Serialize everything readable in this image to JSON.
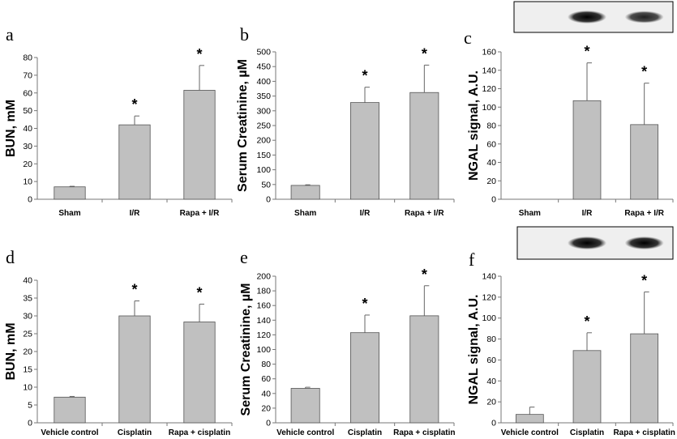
{
  "colors": {
    "bar_fill": "#c0c0c0",
    "bar_stroke": "#555555",
    "axis": "#777777",
    "blot_bg": "#efefef"
  },
  "chart_data": [
    {
      "type": "bar",
      "panel": "a",
      "categories": [
        "Sham",
        "I/R",
        "Rapa + I/R"
      ],
      "values": [
        7,
        42,
        61.5
      ],
      "errors": [
        0.3,
        5,
        14
      ],
      "significance": [
        "",
        "*",
        "*"
      ],
      "ylabel": "BUN, mM",
      "ylim": [
        0,
        80
      ],
      "yticks": [
        0,
        10,
        20,
        30,
        40,
        50,
        60,
        70,
        80
      ],
      "grid": false
    },
    {
      "type": "bar",
      "panel": "b",
      "categories": [
        "Sham",
        "I/R",
        "Rapa + I/R"
      ],
      "values": [
        47,
        328,
        362
      ],
      "errors": [
        2,
        52,
        93
      ],
      "significance": [
        "",
        "*",
        "*"
      ],
      "ylabel": "Serum Creatinine, µM",
      "ylim": [
        0,
        500
      ],
      "yticks": [
        0,
        50,
        100,
        150,
        200,
        250,
        300,
        350,
        400,
        450,
        500
      ],
      "grid": false
    },
    {
      "type": "bar",
      "panel": "c",
      "categories": [
        "Sham",
        "I/R",
        "Rapa + I/R"
      ],
      "values": [
        0,
        107,
        81
      ],
      "errors": [
        0,
        41,
        45
      ],
      "significance": [
        "",
        "*",
        "*"
      ],
      "ylabel": "NGAL signal, A.U.",
      "ylim": [
        0,
        160
      ],
      "yticks": [
        0,
        20,
        40,
        60,
        80,
        100,
        120,
        140,
        160
      ],
      "grid": false,
      "blot_bands": [
        0,
        1,
        0.75
      ]
    },
    {
      "type": "bar",
      "panel": "d",
      "categories": [
        "Vehicle control",
        "Cisplatin",
        "Rapa + cisplatin"
      ],
      "values": [
        7.2,
        30,
        28.3
      ],
      "errors": [
        0.2,
        4.2,
        5
      ],
      "significance": [
        "",
        "*",
        "*"
      ],
      "ylabel": "BUN, mM",
      "ylim": [
        0,
        40
      ],
      "yticks": [
        0,
        5,
        10,
        15,
        20,
        25,
        30,
        35,
        40
      ],
      "grid": false
    },
    {
      "type": "bar",
      "panel": "e",
      "categories": [
        "Vehicle control",
        "Cisplatin",
        "Rapa + cisplatin"
      ],
      "values": [
        47,
        123,
        146
      ],
      "errors": [
        1.5,
        24,
        41
      ],
      "significance": [
        "",
        "*",
        "*"
      ],
      "ylabel": "Serum Creatinine, µM",
      "ylim": [
        0,
        200
      ],
      "yticks": [
        0,
        20,
        40,
        60,
        80,
        100,
        120,
        140,
        160,
        180,
        200
      ],
      "grid": false
    },
    {
      "type": "bar",
      "panel": "f",
      "categories": [
        "Vehicle control",
        "Cisplatin",
        "Rapa + cisplatin"
      ],
      "values": [
        8,
        69,
        85
      ],
      "errors": [
        7,
        17,
        40
      ],
      "significance": [
        "",
        "*",
        "*"
      ],
      "ylabel": "NGAL signal, A.U.",
      "ylim": [
        0,
        140
      ],
      "yticks": [
        0,
        20,
        40,
        60,
        80,
        100,
        120,
        140
      ],
      "grid": false,
      "blot_bands": [
        0,
        1,
        1
      ]
    }
  ]
}
